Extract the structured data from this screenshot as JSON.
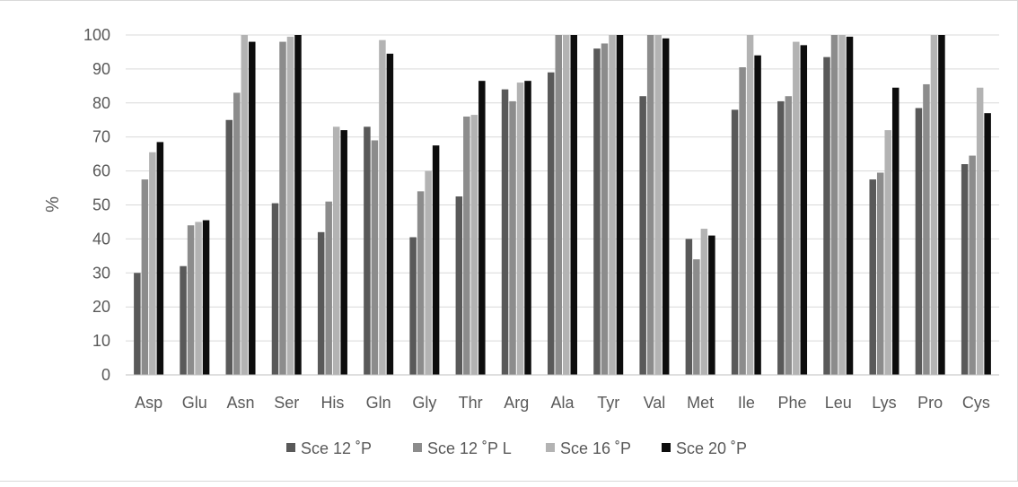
{
  "chart_data": {
    "type": "bar",
    "title": "",
    "xlabel": "",
    "ylabel": "%",
    "ylim": [
      0,
      100
    ],
    "yticks": [
      0,
      10,
      20,
      30,
      40,
      50,
      60,
      70,
      80,
      90,
      100
    ],
    "grid": "horizontal",
    "legend_position": "bottom",
    "categories": [
      "Asp",
      "Glu",
      "Asn",
      "Ser",
      "His",
      "Gln",
      "Gly",
      "Thr",
      "Arg",
      "Ala",
      "Tyr",
      "Val",
      "Met",
      "Ile",
      "Phe",
      "Leu",
      "Lys",
      "Pro",
      "Cys"
    ],
    "series": [
      {
        "name": "Sce 12 ˚P",
        "color": "#595959",
        "values": [
          30,
          32,
          75,
          50.5,
          42,
          73,
          40.5,
          52.5,
          84,
          89,
          96,
          82,
          40,
          78,
          80.5,
          93.5,
          57.5,
          78.5,
          62
        ]
      },
      {
        "name": "Sce 12 ˚P L",
        "color": "#8c8c8c",
        "values": [
          57.5,
          44,
          83,
          98,
          51,
          69,
          54,
          76,
          80.5,
          100,
          97.5,
          100,
          34,
          90.5,
          82,
          100,
          59.5,
          85.5,
          64.5
        ]
      },
      {
        "name": "Sce 16 ˚P",
        "color": "#b3b3b3",
        "values": [
          65.5,
          45,
          100,
          99.5,
          73,
          98.5,
          60,
          76.5,
          86,
          100,
          100,
          100,
          43,
          100,
          98,
          100,
          72,
          100,
          84.5
        ]
      },
      {
        "name": "Sce 20 ˚P",
        "color": "#0d0d0d",
        "values": [
          68.5,
          45.5,
          98,
          100,
          72,
          94.5,
          67.5,
          86.5,
          86.5,
          100,
          100,
          99,
          41,
          94,
          97,
          99.5,
          84.5,
          100,
          77
        ]
      }
    ]
  }
}
